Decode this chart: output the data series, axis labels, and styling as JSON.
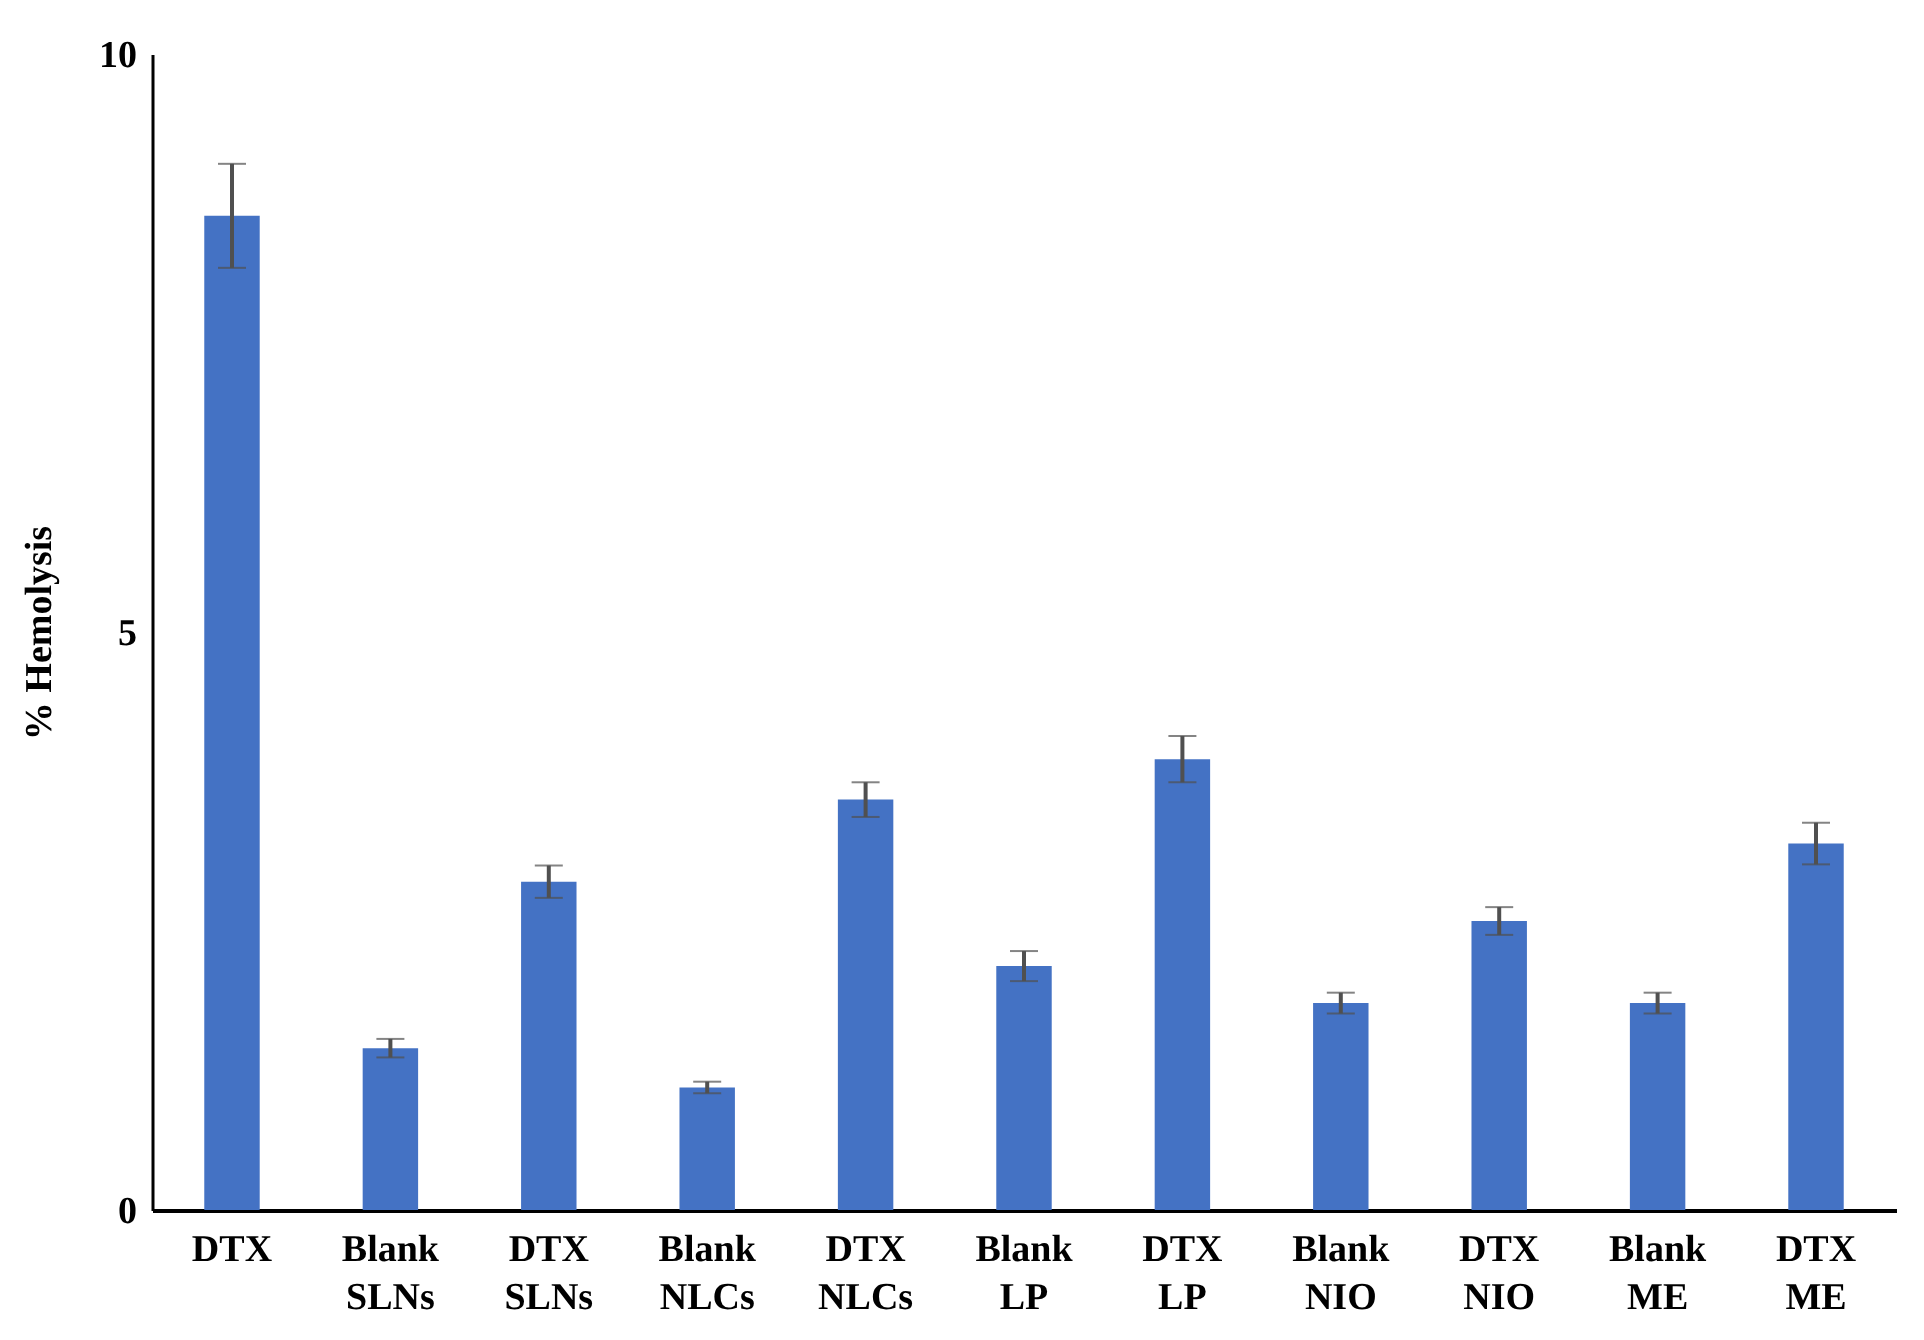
{
  "chart_data": {
    "type": "bar",
    "ylabel": "% Hemolysis",
    "categories": [
      "DTX",
      "Blank SLNs",
      "DTX SLNs",
      "Blank NLCs",
      "DTX NLCs",
      "Blank LP",
      "DTX LP",
      "Blank NIO",
      "DTX NIO",
      "Blank ME",
      "DTX ME"
    ],
    "values": [
      8.6,
      1.4,
      2.84,
      1.06,
      3.55,
      2.11,
      3.9,
      1.79,
      2.5,
      1.79,
      3.17
    ],
    "errors": [
      0.45,
      0.08,
      0.14,
      0.05,
      0.15,
      0.13,
      0.2,
      0.09,
      0.12,
      0.09,
      0.18
    ],
    "color": "#4472c4",
    "ylim": [
      0,
      10
    ],
    "yticks": [
      0,
      5,
      10
    ],
    "grid": false
  }
}
